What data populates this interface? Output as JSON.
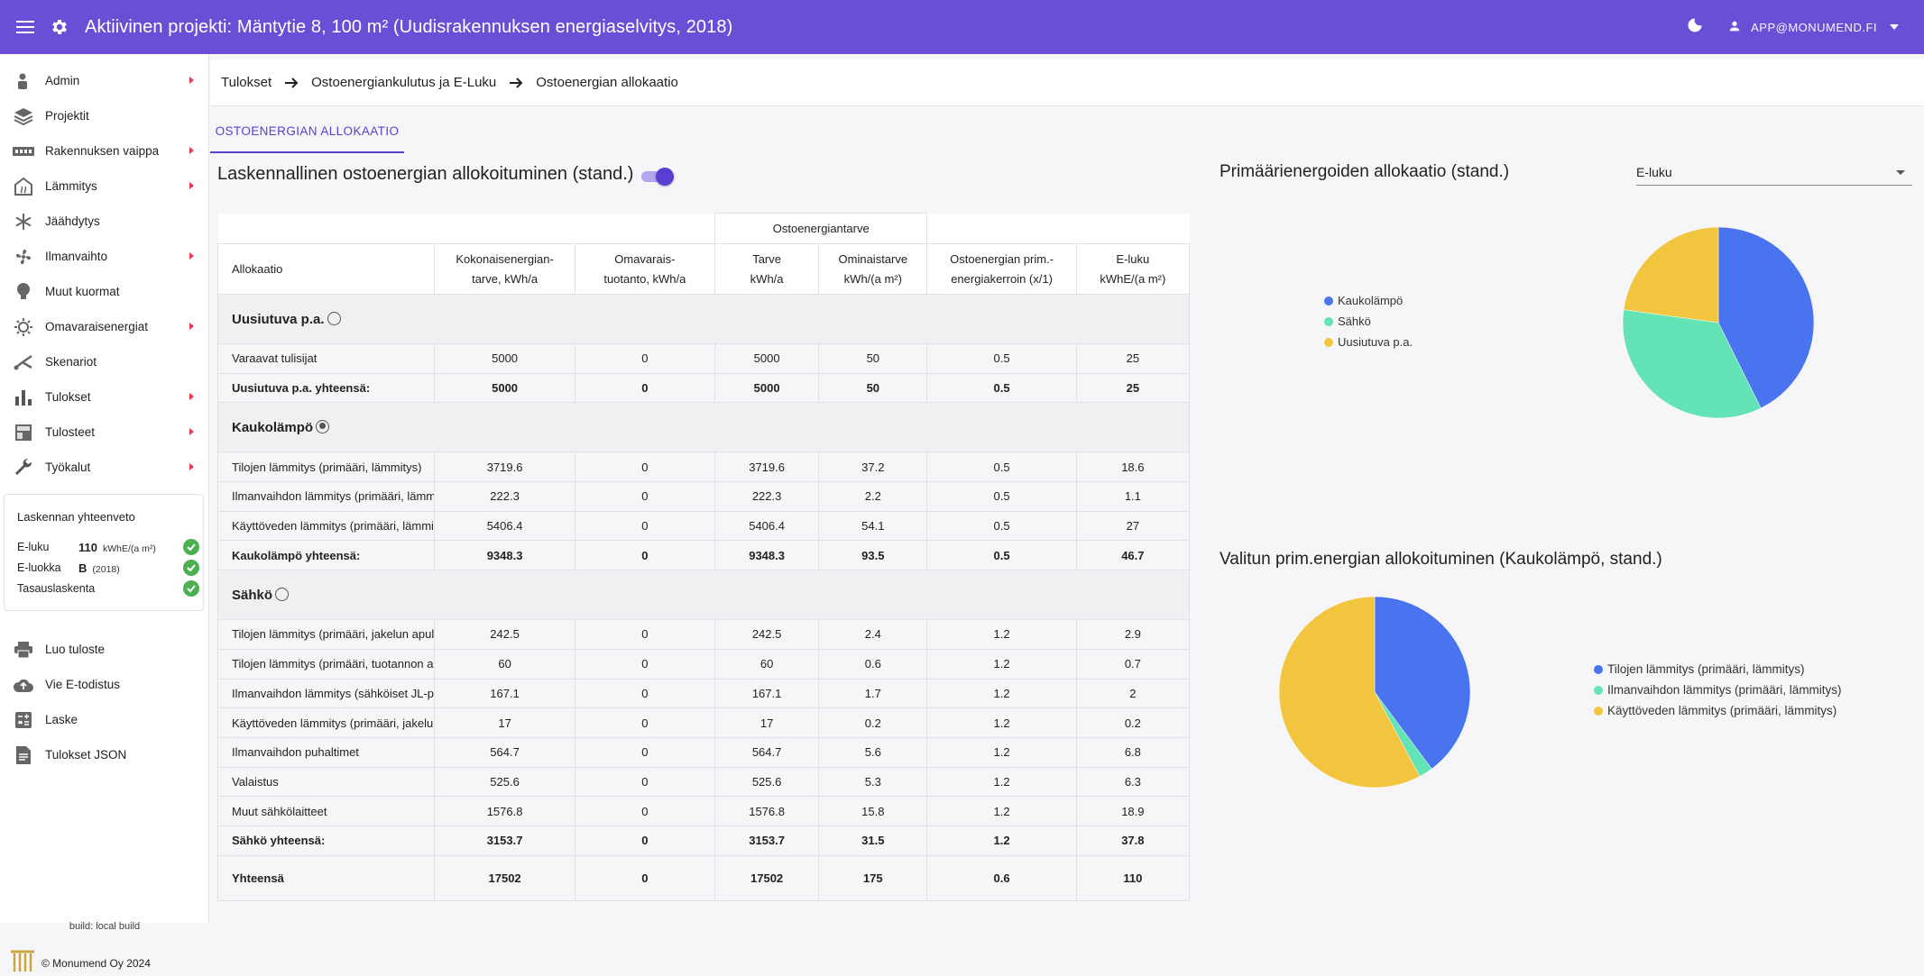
{
  "app": {
    "title": "Aktiivinen projekti: Mäntytie 8, 100 m² (Uudisrakennuksen energiaselvitys, 2018)",
    "user": "APP@MONUMEND.FI"
  },
  "colors": {
    "primary": "#6a4fd6",
    "accent": "#5b3ed1",
    "blue": "#4a73ef",
    "green": "#64e3b7",
    "yellow": "#f2c53f",
    "check": "#4caf50"
  },
  "sidebar": {
    "items": [
      {
        "label": "Admin",
        "icon": "admin-icon",
        "has_children": true
      },
      {
        "label": "Projektit",
        "icon": "layers-icon",
        "has_children": false
      },
      {
        "label": "Rakennuksen vaippa",
        "icon": "wall-icon",
        "has_children": true
      },
      {
        "label": "Lämmitys",
        "icon": "house-heat-icon",
        "has_children": true
      },
      {
        "label": "Jäähdytys",
        "icon": "snowflake-icon",
        "has_children": false
      },
      {
        "label": "Ilmanvaihto",
        "icon": "fan-icon",
        "has_children": true
      },
      {
        "label": "Muut kuormat",
        "icon": "bulb-icon",
        "has_children": false
      },
      {
        "label": "Omavaraisenergiat",
        "icon": "sun-icon",
        "has_children": true
      },
      {
        "label": "Skenariot",
        "icon": "branch-icon",
        "has_children": false
      },
      {
        "label": "Tulokset",
        "icon": "bar-chart-icon",
        "has_children": true
      },
      {
        "label": "Tulosteet",
        "icon": "print-layout-icon",
        "has_children": true
      },
      {
        "label": "Työkalut",
        "icon": "wrench-icon",
        "has_children": true
      }
    ],
    "summary": {
      "title": "Laskennan yhteenveto",
      "eluku_label": "E-luku",
      "eluku_value": "110",
      "eluku_unit": "kWhE/(a m²)",
      "eluokka_label": "E-luokka",
      "eluokka_value": "B",
      "eluokka_year": "(2018)",
      "tasaus_label": "Tasauslaskenta"
    },
    "actions": [
      {
        "label": "Luo tuloste",
        "icon": "printer-icon"
      },
      {
        "label": "Vie E-todistus",
        "icon": "cloud-upload-icon"
      },
      {
        "label": "Laske",
        "icon": "calculator-icon"
      },
      {
        "label": "Tulokset JSON",
        "icon": "document-icon"
      }
    ],
    "build": "build: local build",
    "copyright": "© Monumend Oy 2024"
  },
  "breadcrumb": [
    "Tulokset",
    "Ostoenergiankulutus ja E-Luku",
    "Ostoenergian allokaatio"
  ],
  "tab": "OSTOENERGIAN ALLOKAATIO",
  "left": {
    "title": "Laskennallinen ostoenergian allokoituminen (stand.)",
    "toggle_on": true
  },
  "table": {
    "super_header": "Ostoenergiantarve",
    "headers": [
      "Allokaatio",
      "Kokonaisenergian-\ntarve, kWh/a",
      "Omavarais-\ntuotanto, kWh/a",
      "Tarve\nkWh/a",
      "Ominaistarve\nkWh/(a m²)",
      "Ostoenergian prim.-\nenergiakerroin (x/1)",
      "E-luku\nkWhE/(a m²)"
    ],
    "groups": [
      {
        "name": "Uusiutuva p.a.",
        "selected": false,
        "rows": [
          [
            "Varaavat tulisijat",
            "5000",
            "0",
            "5000",
            "50",
            "0.5",
            "25"
          ]
        ],
        "total": [
          "Uusiutuva p.a. yhteensä:",
          "5000",
          "0",
          "5000",
          "50",
          "0.5",
          "25"
        ]
      },
      {
        "name": "Kaukolämpö",
        "selected": true,
        "rows": [
          [
            "Tilojen lämmitys (primääri, lämmitys)",
            "3719.6",
            "0",
            "3719.6",
            "37.2",
            "0.5",
            "18.6"
          ],
          [
            "Ilmanvaihdon lämmitys (primääri, lämmitys)",
            "222.3",
            "0",
            "222.3",
            "2.2",
            "0.5",
            "1.1"
          ],
          [
            "Käyttöveden lämmitys (primääri, lämmitys)",
            "5406.4",
            "0",
            "5406.4",
            "54.1",
            "0.5",
            "27"
          ]
        ],
        "total": [
          "Kaukolämpö yhteensä:",
          "9348.3",
          "0",
          "9348.3",
          "93.5",
          "0.5",
          "46.7"
        ]
      },
      {
        "name": "Sähkö",
        "selected": false,
        "rows": [
          [
            "Tilojen lämmitys (primääri, jakelun apulaitteet)",
            "242.5",
            "0",
            "242.5",
            "2.4",
            "1.2",
            "2.9"
          ],
          [
            "Tilojen lämmitys (primääri, tuotannon apulaitteet)",
            "60",
            "0",
            "60",
            "0.6",
            "1.2",
            "0.7"
          ],
          [
            "Ilmanvaihdon lämmitys (sähköiset JL-patterit)",
            "167.1",
            "0",
            "167.1",
            "1.7",
            "1.2",
            "2"
          ],
          [
            "Käyttöveden lämmitys (primääri, jakelun apulaitteet)",
            "17",
            "0",
            "17",
            "0.2",
            "1.2",
            "0.2"
          ],
          [
            "Ilmanvaihdon puhaltimet",
            "564.7",
            "0",
            "564.7",
            "5.6",
            "1.2",
            "6.8"
          ],
          [
            "Valaistus",
            "525.6",
            "0",
            "525.6",
            "5.3",
            "1.2",
            "6.3"
          ],
          [
            "Muut sähkölaitteet",
            "1576.8",
            "0",
            "1576.8",
            "15.8",
            "1.2",
            "18.9"
          ]
        ],
        "total": [
          "Sähkö yhteensä:",
          "3153.7",
          "0",
          "3153.7",
          "31.5",
          "1.2",
          "37.8"
        ]
      }
    ],
    "grand_total": [
      "Yhteensä",
      "17502",
      "0",
      "17502",
      "175",
      "0.6",
      "110"
    ]
  },
  "right": {
    "title1": "Primäärienergoiden allokaatio (stand.)",
    "select_value": "E-luku",
    "title2": "Valitun prim.energian allokoituminen (Kaukolämpö, stand.)"
  },
  "chart_data": [
    {
      "type": "pie",
      "title": "Primäärienergoiden allokaatio (stand.)",
      "labels": [
        "Kaukolämpö",
        "Sähkö",
        "Uusiutuva p.a."
      ],
      "values": [
        46.7,
        37.8,
        25
      ],
      "colors": [
        "#4a73ef",
        "#64e3b7",
        "#f2c53f"
      ]
    },
    {
      "type": "pie",
      "title": "Valitun prim.energian allokoituminen (Kaukolämpö, stand.)",
      "labels": [
        "Tilojen lämmitys (primääri, lämmitys)",
        "Ilmanvaihdon lämmitys (primääri, lämmitys)",
        "Käyttöveden lämmitys (primääri, lämmitys)"
      ],
      "values": [
        18.6,
        1.1,
        27
      ],
      "colors": [
        "#4a73ef",
        "#64e3b7",
        "#f2c53f"
      ]
    }
  ]
}
